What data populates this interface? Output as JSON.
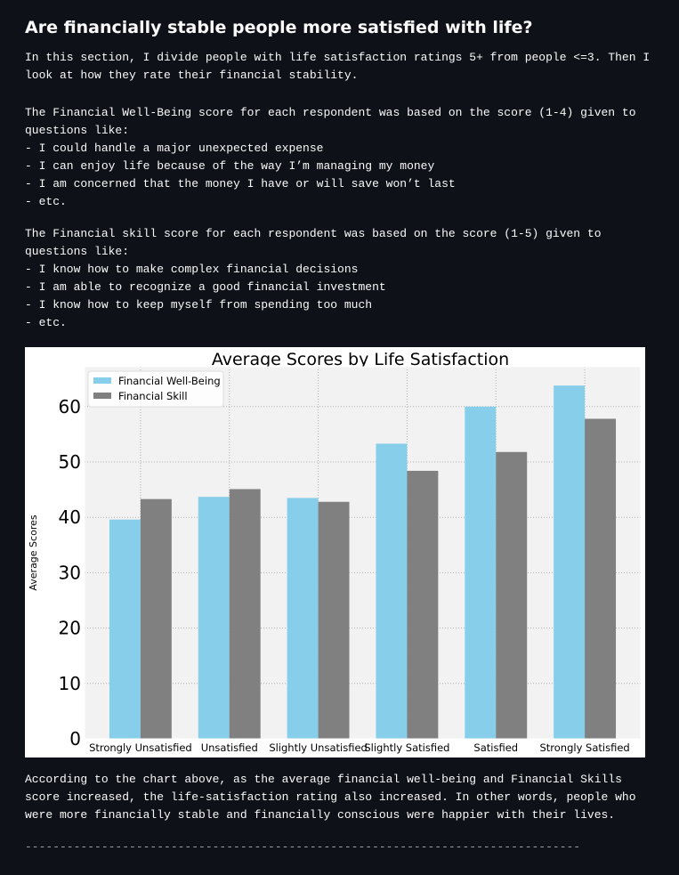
{
  "header": {
    "title": "Are financially stable people more satisfied with life?"
  },
  "paragraphs": [
    {
      "text": "In this section, I divide people with life satisfaction ratings 5+ from people <=3. Then I look at how they rate their financial stability.",
      "items": []
    },
    {
      "text": "The Financial Well-Being score for each respondent was based on the score (1-4) given to questions like:",
      "items": [
        "- I could handle a major unexpected expense",
        "- I can enjoy life because of the way I’m managing my money",
        "- I am concerned that the money I have or will save won’t last",
        "- etc."
      ]
    },
    {
      "text": "The Financial skill score for each respondent was based on the score (1-5) given to questions like:",
      "items": [
        "- I know how to make complex financial decisions",
        "- I am able to recognize a good financial investment",
        "- I know how to keep myself from spending too much",
        "- etc."
      ]
    }
  ],
  "chart_data": {
    "type": "bar",
    "title": "Average Scores by Life Satisfaction",
    "y_label": "Average Scores",
    "categories": [
      "Strongly Unsatisfied",
      "Unsatisfied",
      "Slightly Unsatisfied",
      "Slightly Satisfied",
      "Satisfied",
      "Strongly Satisfied"
    ],
    "series": [
      {
        "name": "Financial Well-Being",
        "color": "#87ceeb",
        "values": [
          39.6,
          43.7,
          43.5,
          53.3,
          60.0,
          63.8
        ]
      },
      {
        "name": "Financial Skill",
        "color": "#808080",
        "values": [
          43.3,
          45.1,
          42.8,
          48.4,
          51.8,
          57.8
        ]
      }
    ],
    "ylim": [
      0,
      67.2
    ],
    "yticks": [
      0,
      10,
      20,
      30,
      40,
      50,
      60
    ],
    "grid": true,
    "legend": "upper left"
  },
  "conclusion": "According to the chart above, as the average financial well-being and Financial Skills score increased, the life-satisfaction rating also increased. In other words, people who were more financially stable and financially conscious were happier with their lives.",
  "divider": "--------------------------------------------------------------------------------"
}
